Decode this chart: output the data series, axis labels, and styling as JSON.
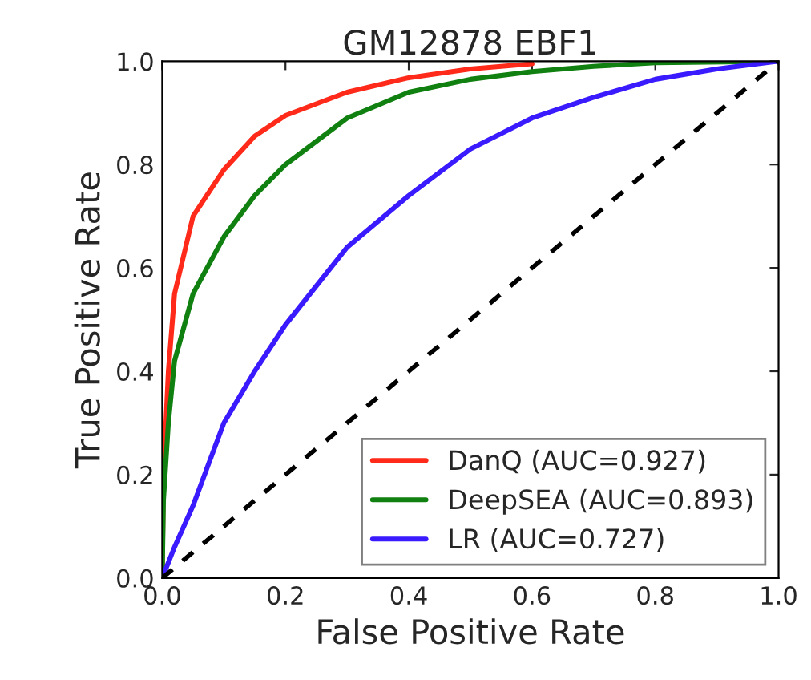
{
  "chart_data": {
    "type": "line",
    "title": "GM12878 EBF1",
    "xlabel": "False Positive Rate",
    "ylabel": "True Positive Rate",
    "xlim": [
      0,
      1
    ],
    "ylim": [
      0,
      1
    ],
    "xticks": [
      {
        "value": 0,
        "label": "0.0"
      },
      {
        "value": 0.2,
        "label": "0.2"
      },
      {
        "value": 0.4,
        "label": "0.4"
      },
      {
        "value": 0.6,
        "label": "0.6"
      },
      {
        "value": 0.8,
        "label": "0.8"
      },
      {
        "value": 1,
        "label": "1.0"
      }
    ],
    "yticks": [
      {
        "value": 0,
        "label": "0.0"
      },
      {
        "value": 0.2,
        "label": "0.2"
      },
      {
        "value": 0.4,
        "label": "0.4"
      },
      {
        "value": 0.6,
        "label": "0.6"
      },
      {
        "value": 0.8,
        "label": "0.8"
      },
      {
        "value": 1,
        "label": "1.0"
      }
    ],
    "grid": false,
    "legend": "bottom right",
    "marker": "none",
    "series": [
      {
        "name": "DanQ (AUC=0.927)",
        "color": "#ff2a1a",
        "line_style": "solid",
        "x": [
          0,
          0.002,
          0.01,
          0.02,
          0.05,
          0.1,
          0.15,
          0.2,
          0.3,
          0.4,
          0.5,
          0.6
        ],
        "values": [
          0,
          0.2,
          0.4,
          0.55,
          0.7,
          0.79,
          0.855,
          0.895,
          0.94,
          0.968,
          0.985,
          0.995
        ]
      },
      {
        "name": "DeepSEA (AUC=0.893)",
        "color": "#108010",
        "line_style": "solid",
        "x": [
          0,
          0.002,
          0.01,
          0.02,
          0.05,
          0.1,
          0.15,
          0.2,
          0.3,
          0.4,
          0.5,
          0.6,
          0.7,
          0.8,
          1
        ],
        "values": [
          0,
          0.15,
          0.3,
          0.42,
          0.55,
          0.66,
          0.74,
          0.8,
          0.89,
          0.94,
          0.965,
          0.98,
          0.99,
          0.997,
          1
        ]
      },
      {
        "name": "LR (AUC=0.727)",
        "color": "#3a1aff",
        "line_style": "solid",
        "x": [
          0,
          0.02,
          0.05,
          0.1,
          0.15,
          0.2,
          0.3,
          0.4,
          0.5,
          0.6,
          0.7,
          0.8,
          0.9,
          1
        ],
        "values": [
          0,
          0.06,
          0.14,
          0.3,
          0.4,
          0.49,
          0.64,
          0.74,
          0.83,
          0.89,
          0.93,
          0.965,
          0.985,
          1
        ]
      },
      {
        "color": "#000000",
        "line_style": "dashed",
        "x": [
          0,
          1
        ],
        "values": [
          0,
          1
        ]
      }
    ]
  }
}
